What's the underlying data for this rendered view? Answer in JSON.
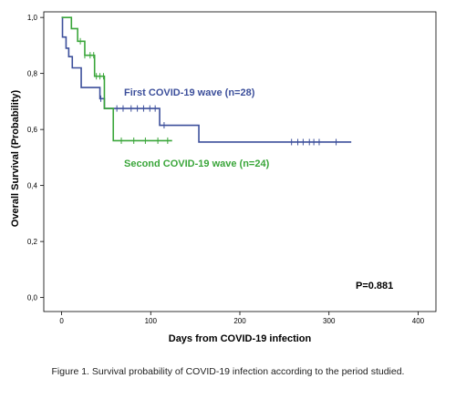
{
  "chart_data": {
    "type": "line",
    "step": true,
    "xlabel": "Days from COVID-19 infection",
    "ylabel": "Overall Survival (Probability)",
    "xlim": [
      -20,
      420
    ],
    "ylim": [
      -0.05,
      1.02
    ],
    "x_ticks": [
      0,
      100,
      200,
      300,
      400
    ],
    "x_tick_labels": [
      "0",
      "100",
      "200",
      "300",
      "400"
    ],
    "y_ticks": [
      0.0,
      0.2,
      0.4,
      0.6,
      0.8,
      1.0
    ],
    "y_tick_labels": [
      "0,0",
      "0,2",
      "0,4",
      "0,6",
      "0,8",
      "1,0"
    ],
    "grid": false,
    "series": [
      {
        "name": "First COVID-19 wave (n=28)",
        "color": "#3c4f9b",
        "x": [
          0,
          1,
          5,
          8,
          12,
          22,
          43,
          48,
          110,
          154,
          325
        ],
        "y": [
          1.0,
          0.93,
          0.89,
          0.86,
          0.82,
          0.75,
          0.71,
          0.675,
          0.615,
          0.555,
          0.555
        ],
        "censored_x": [
          44,
          62,
          69,
          78,
          85,
          92,
          99,
          105,
          115,
          258,
          265,
          271,
          278,
          283,
          289,
          308
        ]
      },
      {
        "name": "Second COVID-19 wave (n=24)",
        "color": "#3aa63a",
        "x": [
          0,
          11,
          18,
          26,
          37,
          48,
          58,
          124
        ],
        "y": [
          1.0,
          0.96,
          0.915,
          0.865,
          0.79,
          0.675,
          0.56,
          0.56
        ],
        "censored_x": [
          21,
          26,
          32,
          36,
          39,
          43,
          47,
          67,
          81,
          94,
          108,
          119
        ]
      }
    ],
    "annotations": [
      "P=0.881"
    ]
  },
  "caption": "Figure 1. Survival probability of COVID-19 infection according to the period studied."
}
